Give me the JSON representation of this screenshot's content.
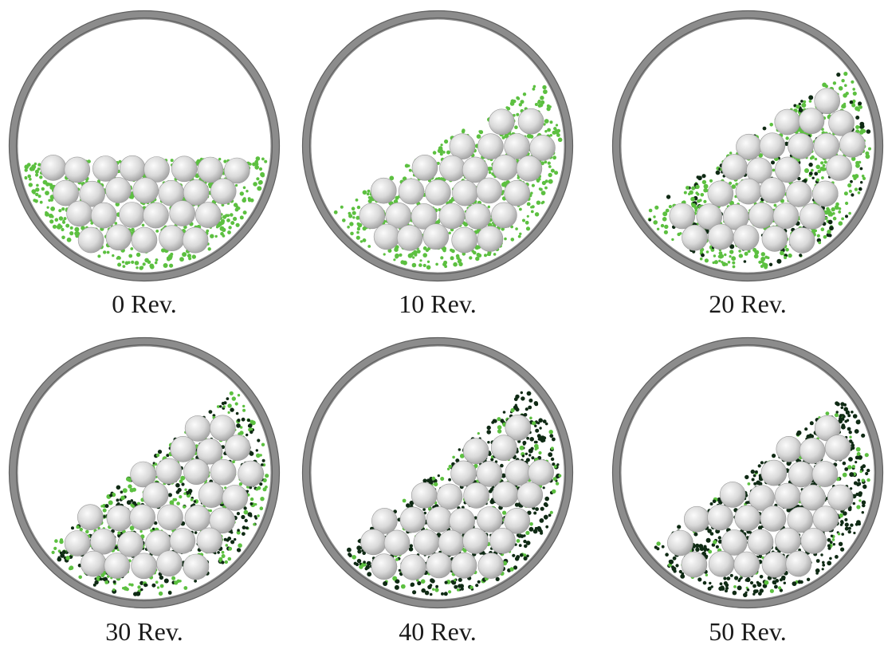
{
  "panels": [
    {
      "label": "0 Rev.",
      "revolutions": 0
    },
    {
      "label": "10 Rev.",
      "revolutions": 10
    },
    {
      "label": "20 Rev.",
      "revolutions": 20
    },
    {
      "label": "30 Rev.",
      "revolutions": 30
    },
    {
      "label": "40 Rev.",
      "revolutions": 40
    },
    {
      "label": "50 Rev.",
      "revolutions": 50
    }
  ],
  "colors": {
    "drum_rim": "#8c8c8c",
    "drum_rim_dark": "#5f5f5f",
    "fine_particle_green": "#5cc040",
    "fine_particle_dark": "#0f2a14",
    "ball_light": "#f4f4f4",
    "ball_dark": "#a9a9a9",
    "label_text": "#1a1a1a"
  }
}
